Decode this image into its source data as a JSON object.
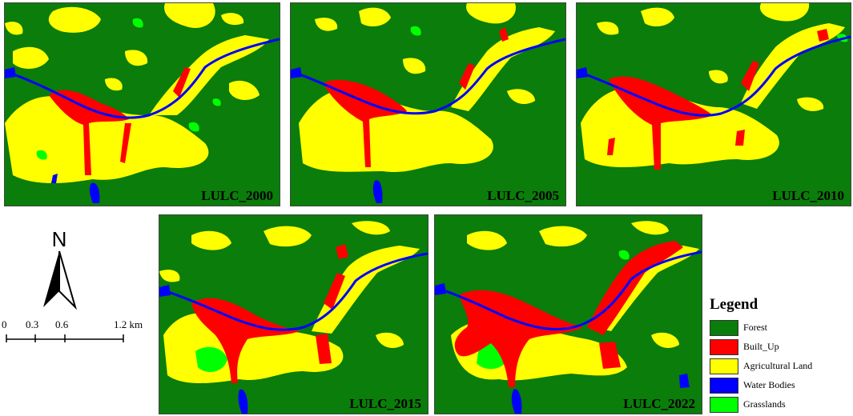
{
  "maps": [
    {
      "label": "LULC_2000"
    },
    {
      "label": "LULC_2005"
    },
    {
      "label": "LULC_2010"
    },
    {
      "label": "LULC_2015"
    },
    {
      "label": "LULC_2022"
    }
  ],
  "north_arrow": {
    "letter": "N"
  },
  "scale_bar": {
    "ticks": [
      "0",
      "0.3",
      "0.6",
      "1.2 km"
    ]
  },
  "legend": {
    "title": "Legend",
    "items": [
      {
        "label": "Forest",
        "color": "#0a7d0a"
      },
      {
        "label": "Built_Up",
        "color": "#ff0000"
      },
      {
        "label": "Agricultural Land",
        "color": "#ffff00"
      },
      {
        "label": "Water Bodies",
        "color": "#0000ff"
      },
      {
        "label": "Grasslands",
        "color": "#00ff00"
      }
    ]
  },
  "colors": {
    "forest": "#0a7d0a",
    "built_up": "#ff0000",
    "agricultural": "#ffff00",
    "water": "#0000ff",
    "grassland": "#00ff00"
  }
}
